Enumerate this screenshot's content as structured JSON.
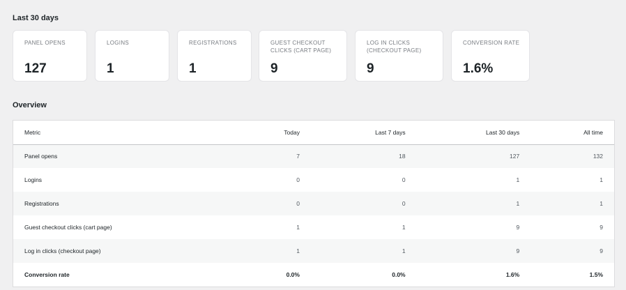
{
  "summary": {
    "title": "Last 30 days",
    "cards": [
      {
        "label": "PANEL OPENS",
        "value": "127"
      },
      {
        "label": "LOGINS",
        "value": "1"
      },
      {
        "label": "REGISTRATIONS",
        "value": "1"
      },
      {
        "label": "GUEST CHECKOUT CLICKS (CART PAGE)",
        "value": "9"
      },
      {
        "label": "LOG IN CLICKS (CHECKOUT PAGE)",
        "value": "9"
      },
      {
        "label": "CONVERSION RATE",
        "value": "1.6%"
      }
    ]
  },
  "overview": {
    "title": "Overview",
    "headers": [
      "Metric",
      "Today",
      "Last 7 days",
      "Last 30 days",
      "All time"
    ],
    "rows": [
      {
        "metric": "Panel opens",
        "today": "7",
        "last7": "18",
        "last30": "127",
        "all": "132"
      },
      {
        "metric": "Logins",
        "today": "0",
        "last7": "0",
        "last30": "1",
        "all": "1"
      },
      {
        "metric": "Registrations",
        "today": "0",
        "last7": "0",
        "last30": "1",
        "all": "1"
      },
      {
        "metric": "Guest checkout clicks (cart page)",
        "today": "1",
        "last7": "1",
        "last30": "9",
        "all": "9"
      },
      {
        "metric": "Log in clicks (checkout page)",
        "today": "1",
        "last7": "1",
        "last30": "9",
        "all": "9"
      },
      {
        "metric": "Conversion rate",
        "today": "0.0%",
        "last7": "0.0%",
        "last30": "1.6%",
        "all": "1.5%"
      }
    ]
  }
}
